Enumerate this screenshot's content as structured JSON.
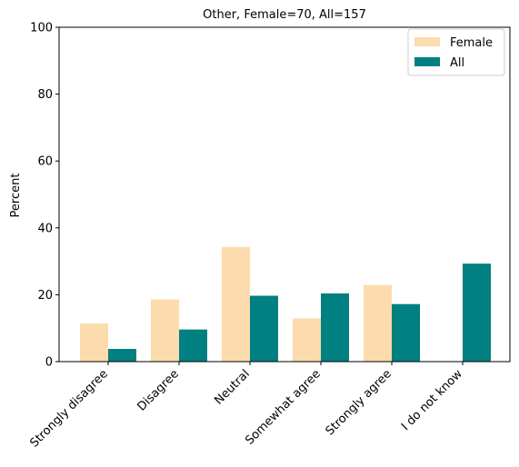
{
  "chart_data": {
    "type": "bar",
    "title": "Other, Female=70, All=157",
    "ylabel": "Percent",
    "xlabel": "",
    "categories": [
      "Strongly disagree",
      "Disagree",
      "Neutral",
      "Somewhat agree",
      "Strongly agree",
      "I do not know"
    ],
    "series": [
      {
        "name": "Female",
        "color": "#FCDCAC",
        "values": [
          11.4,
          18.6,
          34.3,
          12.9,
          22.9,
          0
        ]
      },
      {
        "name": "All",
        "color": "#008080",
        "values": [
          3.8,
          9.6,
          19.7,
          20.4,
          17.2,
          29.3
        ]
      }
    ],
    "ylim": [
      0,
      100
    ],
    "yticks": [
      0,
      20,
      40,
      60,
      80,
      100
    ],
    "legend": "top-right",
    "grid": false
  }
}
